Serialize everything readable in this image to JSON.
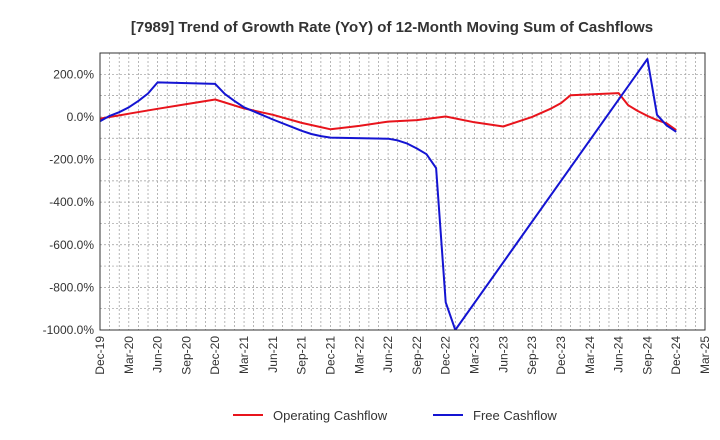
{
  "chart_data": {
    "type": "line",
    "title": "[7989]  Trend of Growth Rate (YoY) of 12-Month Moving Sum of Cashflows",
    "xlabel": "",
    "ylabel": "",
    "ylim": [
      -1000,
      300
    ],
    "y_ticks": [
      "200.0%",
      "0.0%",
      "-200.0%",
      "-400.0%",
      "-600.0%",
      "-800.0%",
      "-1000.0%"
    ],
    "y_tick_values": [
      200,
      0,
      -200,
      -400,
      -600,
      -800,
      -1000
    ],
    "x_ticks": [
      "Dec-19",
      "Mar-20",
      "Jun-20",
      "Sep-20",
      "Dec-20",
      "Mar-21",
      "Jun-21",
      "Sep-21",
      "Dec-21",
      "Mar-22",
      "Jun-22",
      "Sep-22",
      "Dec-22",
      "Mar-23",
      "Jun-23",
      "Sep-23",
      "Dec-23",
      "Mar-24",
      "Jun-24",
      "Sep-24",
      "Dec-24",
      "Mar-25"
    ],
    "grid": true,
    "legend_position": "bottom",
    "series": [
      {
        "name": "Operating Cashflow",
        "color": "#e8141c",
        "points": [
          [
            "Dec-19",
            -8
          ],
          [
            "Mar-20",
            15
          ],
          [
            "Jun-20",
            38
          ],
          [
            "Sep-20",
            60
          ],
          [
            "Dec-20",
            82
          ],
          [
            "Mar-21",
            40
          ],
          [
            "Jun-21",
            10
          ],
          [
            "Sep-21",
            -28
          ],
          [
            "Dec-21",
            -58
          ],
          [
            "Mar-22",
            -42
          ],
          [
            "Jun-22",
            -22
          ],
          [
            "Sep-22",
            -15
          ],
          [
            "Dec-22",
            2
          ],
          [
            "Mar-23",
            -25
          ],
          [
            "Jun-23",
            -45
          ],
          [
            "Sep-23",
            0
          ],
          [
            "Oct-23",
            20
          ],
          [
            "Nov-23",
            40
          ],
          [
            "Dec-23",
            65
          ],
          [
            "Jan-24",
            102
          ],
          [
            "Jun-24",
            112
          ],
          [
            "Jul-24",
            55
          ],
          [
            "Aug-24",
            28
          ],
          [
            "Sep-24",
            5
          ],
          [
            "Oct-24",
            -15
          ],
          [
            "Nov-24",
            -30
          ],
          [
            "Dec-24",
            -62
          ]
        ]
      },
      {
        "name": "Free Cashflow",
        "color": "#1414d2",
        "points": [
          [
            "Dec-19",
            -20
          ],
          [
            "Jan-20",
            5
          ],
          [
            "Feb-20",
            22
          ],
          [
            "Mar-20",
            45
          ],
          [
            "Apr-20",
            75
          ],
          [
            "May-20",
            110
          ],
          [
            "Jun-20",
            162
          ],
          [
            "Dec-20",
            155
          ],
          [
            "Jan-21",
            108
          ],
          [
            "Feb-21",
            75
          ],
          [
            "Mar-21",
            45
          ],
          [
            "Jun-21",
            -12
          ],
          [
            "Sep-21",
            -65
          ],
          [
            "Oct-21",
            -80
          ],
          [
            "Nov-21",
            -90
          ],
          [
            "Dec-21",
            -97
          ],
          [
            "Jun-22",
            -102
          ],
          [
            "Jul-22",
            -110
          ],
          [
            "Aug-22",
            -125
          ],
          [
            "Sep-22",
            -148
          ],
          [
            "Oct-22",
            -175
          ],
          [
            "Nov-22",
            -240
          ],
          [
            "Dec-22",
            -870
          ],
          [
            "Jan-23",
            -1000
          ],
          [
            "Sep-24",
            272
          ],
          [
            "Oct-24",
            10
          ],
          [
            "Nov-24",
            -40
          ],
          [
            "Dec-24",
            -70
          ]
        ]
      }
    ]
  }
}
